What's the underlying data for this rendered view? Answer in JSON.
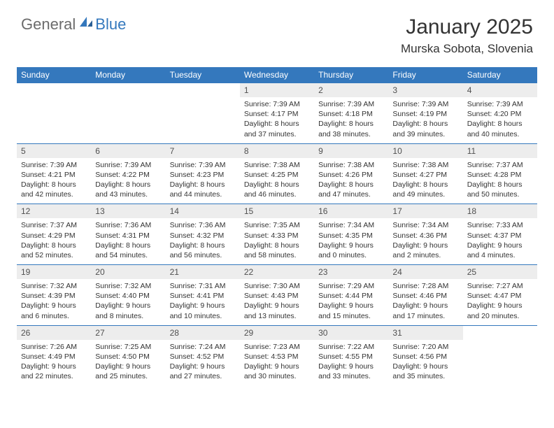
{
  "logo": {
    "text1": "General",
    "text2": "Blue"
  },
  "title": "January 2025",
  "location": "Murska Sobota, Slovenia",
  "colors": {
    "header_bg": "#3478bd",
    "header_text": "#ffffff",
    "daynum_bg": "#ededed",
    "text": "#333333",
    "logo_gray": "#6b6b6b",
    "logo_blue": "#3478bd"
  },
  "day_headers": [
    "Sunday",
    "Monday",
    "Tuesday",
    "Wednesday",
    "Thursday",
    "Friday",
    "Saturday"
  ],
  "weeks": [
    [
      null,
      null,
      null,
      {
        "n": "1",
        "sr": "7:39 AM",
        "ss": "4:17 PM",
        "dl": "8 hours and 37 minutes."
      },
      {
        "n": "2",
        "sr": "7:39 AM",
        "ss": "4:18 PM",
        "dl": "8 hours and 38 minutes."
      },
      {
        "n": "3",
        "sr": "7:39 AM",
        "ss": "4:19 PM",
        "dl": "8 hours and 39 minutes."
      },
      {
        "n": "4",
        "sr": "7:39 AM",
        "ss": "4:20 PM",
        "dl": "8 hours and 40 minutes."
      }
    ],
    [
      {
        "n": "5",
        "sr": "7:39 AM",
        "ss": "4:21 PM",
        "dl": "8 hours and 42 minutes."
      },
      {
        "n": "6",
        "sr": "7:39 AM",
        "ss": "4:22 PM",
        "dl": "8 hours and 43 minutes."
      },
      {
        "n": "7",
        "sr": "7:39 AM",
        "ss": "4:23 PM",
        "dl": "8 hours and 44 minutes."
      },
      {
        "n": "8",
        "sr": "7:38 AM",
        "ss": "4:25 PM",
        "dl": "8 hours and 46 minutes."
      },
      {
        "n": "9",
        "sr": "7:38 AM",
        "ss": "4:26 PM",
        "dl": "8 hours and 47 minutes."
      },
      {
        "n": "10",
        "sr": "7:38 AM",
        "ss": "4:27 PM",
        "dl": "8 hours and 49 minutes."
      },
      {
        "n": "11",
        "sr": "7:37 AM",
        "ss": "4:28 PM",
        "dl": "8 hours and 50 minutes."
      }
    ],
    [
      {
        "n": "12",
        "sr": "7:37 AM",
        "ss": "4:29 PM",
        "dl": "8 hours and 52 minutes."
      },
      {
        "n": "13",
        "sr": "7:36 AM",
        "ss": "4:31 PM",
        "dl": "8 hours and 54 minutes."
      },
      {
        "n": "14",
        "sr": "7:36 AM",
        "ss": "4:32 PM",
        "dl": "8 hours and 56 minutes."
      },
      {
        "n": "15",
        "sr": "7:35 AM",
        "ss": "4:33 PM",
        "dl": "8 hours and 58 minutes."
      },
      {
        "n": "16",
        "sr": "7:34 AM",
        "ss": "4:35 PM",
        "dl": "9 hours and 0 minutes."
      },
      {
        "n": "17",
        "sr": "7:34 AM",
        "ss": "4:36 PM",
        "dl": "9 hours and 2 minutes."
      },
      {
        "n": "18",
        "sr": "7:33 AM",
        "ss": "4:37 PM",
        "dl": "9 hours and 4 minutes."
      }
    ],
    [
      {
        "n": "19",
        "sr": "7:32 AM",
        "ss": "4:39 PM",
        "dl": "9 hours and 6 minutes."
      },
      {
        "n": "20",
        "sr": "7:32 AM",
        "ss": "4:40 PM",
        "dl": "9 hours and 8 minutes."
      },
      {
        "n": "21",
        "sr": "7:31 AM",
        "ss": "4:41 PM",
        "dl": "9 hours and 10 minutes."
      },
      {
        "n": "22",
        "sr": "7:30 AM",
        "ss": "4:43 PM",
        "dl": "9 hours and 13 minutes."
      },
      {
        "n": "23",
        "sr": "7:29 AM",
        "ss": "4:44 PM",
        "dl": "9 hours and 15 minutes."
      },
      {
        "n": "24",
        "sr": "7:28 AM",
        "ss": "4:46 PM",
        "dl": "9 hours and 17 minutes."
      },
      {
        "n": "25",
        "sr": "7:27 AM",
        "ss": "4:47 PM",
        "dl": "9 hours and 20 minutes."
      }
    ],
    [
      {
        "n": "26",
        "sr": "7:26 AM",
        "ss": "4:49 PM",
        "dl": "9 hours and 22 minutes."
      },
      {
        "n": "27",
        "sr": "7:25 AM",
        "ss": "4:50 PM",
        "dl": "9 hours and 25 minutes."
      },
      {
        "n": "28",
        "sr": "7:24 AM",
        "ss": "4:52 PM",
        "dl": "9 hours and 27 minutes."
      },
      {
        "n": "29",
        "sr": "7:23 AM",
        "ss": "4:53 PM",
        "dl": "9 hours and 30 minutes."
      },
      {
        "n": "30",
        "sr": "7:22 AM",
        "ss": "4:55 PM",
        "dl": "9 hours and 33 minutes."
      },
      {
        "n": "31",
        "sr": "7:20 AM",
        "ss": "4:56 PM",
        "dl": "9 hours and 35 minutes."
      },
      null
    ]
  ],
  "labels": {
    "sunrise": "Sunrise:",
    "sunset": "Sunset:",
    "daylight": "Daylight:"
  }
}
